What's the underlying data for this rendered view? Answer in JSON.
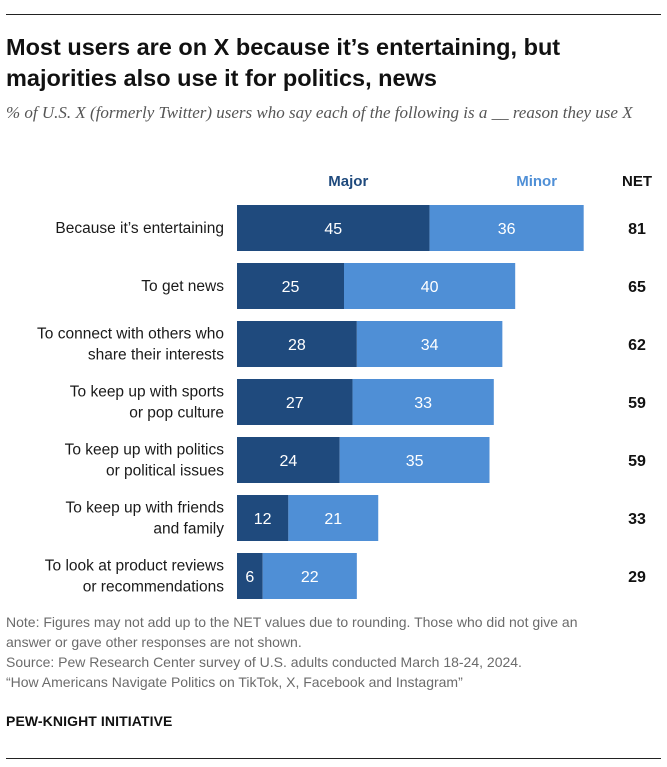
{
  "title": "Most users are on X because it’s entertaining, but majorities also use it for politics, news",
  "subtitle": "% of U.S. X (formerly Twitter) users who say each of the following is a __ reason they use X",
  "chart_data": {
    "type": "bar",
    "orientation": "horizontal",
    "stacked": true,
    "categories": [
      [
        "Because it’s entertaining"
      ],
      [
        "To get news"
      ],
      [
        "To connect with others who",
        "share their interests"
      ],
      [
        "To keep up with sports",
        "or pop culture"
      ],
      [
        "To keep up with politics",
        "or political issues"
      ],
      [
        "To keep up with friends",
        "and family"
      ],
      [
        "To look at product reviews",
        "or recommendations"
      ]
    ],
    "series": [
      {
        "name": "Major",
        "values": [
          45,
          25,
          28,
          27,
          24,
          12,
          6
        ],
        "color": "#1f4a7d"
      },
      {
        "name": "Minor",
        "values": [
          36,
          40,
          34,
          33,
          35,
          21,
          22
        ],
        "color": "#4f8fd6"
      }
    ],
    "net_label": "NET",
    "net": [
      81,
      65,
      62,
      59,
      59,
      33,
      29
    ],
    "legend_colors": {
      "Major": "#1f4a7d",
      "Minor": "#4f8fd6"
    },
    "label_color": "#ffffff",
    "xlim": [
      0,
      100
    ]
  },
  "notes": {
    "note_lines": [
      "Note: Figures may not add up to the NET values due to rounding. Those who did not give an",
      "answer or gave other responses are not shown."
    ],
    "source": "Source: Pew Research Center survey of U.S. adults conducted March 18-24, 2024.",
    "report": "“How Americans Navigate Politics on TikTok, X, Facebook and Instagram”"
  },
  "org": "PEW-KNIGHT INITIATIVE"
}
